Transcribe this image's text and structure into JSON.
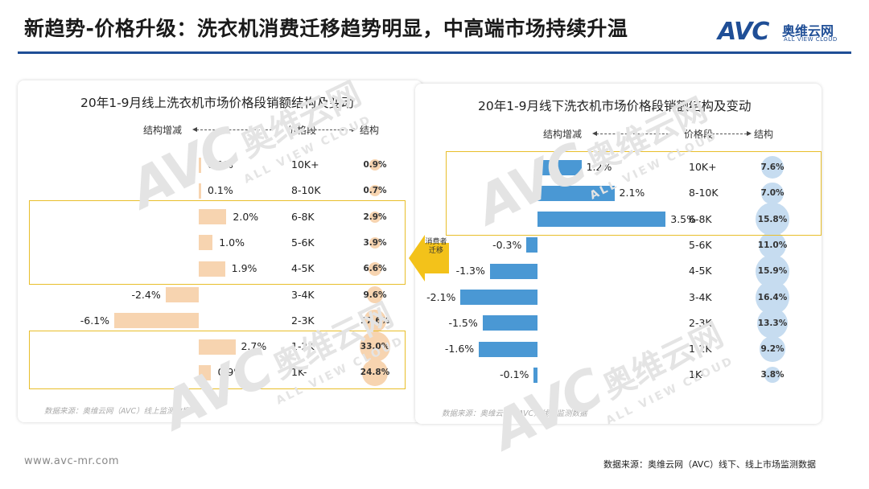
{
  "header": {
    "title": "新趋势-价格升级：洗衣机消费迁移趋势明显，中高端市场持续升温",
    "logo_avc": "AVC",
    "logo_cn": "奥维云网",
    "logo_en": "ALL VIEW CLOUD",
    "accent_color": "#1f4e96"
  },
  "watermark": {
    "avc": "AVC",
    "cn": "奥维云网",
    "en": "ALL VIEW CLOUD"
  },
  "migration_label": "消费者迁移",
  "footer": {
    "url": "www.avc-mr.com",
    "source": "数据来源：奥维云网（AVC）线下、线上市场监测数据"
  },
  "chart_data": [
    {
      "type": "bar",
      "title": "20年1-9月线上洗衣机市场价格段销额结构及变动",
      "header_change": "结构增减",
      "header_segment": "价格段",
      "header_share": "结构",
      "bar_color": "#f7d4b0",
      "categories": [
        "10K+",
        "8-10K",
        "6-8K",
        "5-6K",
        "4-5K",
        "3-4K",
        "2-3K",
        "1-2K",
        "1K-"
      ],
      "series": [
        {
          "name": "结构增减",
          "values": [
            0.1,
            0.1,
            2.0,
            1.0,
            1.9,
            -2.4,
            -6.1,
            2.7,
            0.9
          ],
          "labels": [
            "0.1%",
            "0.1%",
            "2.0%",
            "1.0%",
            "1.9%",
            "-2.4%",
            "-6.1%",
            "2.7%",
            "0.9%"
          ]
        },
        {
          "name": "结构",
          "values": [
            0.9,
            0.7,
            2.9,
            3.9,
            6.6,
            9.6,
            17.6,
            33.0,
            24.8
          ],
          "labels": [
            "0.9%",
            "0.7%",
            "2.9%",
            "3.9%",
            "6.6%",
            "9.6%",
            "17.6%",
            "33.0%",
            "24.8%"
          ]
        }
      ],
      "highlight_groups": [
        [
          "6-8K",
          "5-6K",
          "4-5K"
        ],
        [
          "1-2K",
          "1K-"
        ]
      ],
      "source_note": "数据来源：奥维云网（AVC）线上监测数据"
    },
    {
      "type": "bar",
      "title": "20年1-9月线下洗衣机市场价格段销额结构及变动",
      "header_change": "结构增减",
      "header_segment": "价格段",
      "header_share": "结构",
      "bar_color": "#4a98d4",
      "categories": [
        "10K+",
        "8-10K",
        "6-8K",
        "5-6K",
        "4-5K",
        "3-4K",
        "2-3K",
        "1-2K",
        "1K-"
      ],
      "series": [
        {
          "name": "结构增减",
          "values": [
            1.2,
            2.1,
            3.5,
            -0.3,
            -1.3,
            -2.1,
            -1.5,
            -1.6,
            -0.1
          ],
          "labels": [
            "1.2%",
            "2.1%",
            "3.5%",
            "-0.3%",
            "-1.3%",
            "-2.1%",
            "-1.5%",
            "-1.6%",
            "-0.1%"
          ]
        },
        {
          "name": "结构",
          "values": [
            7.6,
            7.0,
            15.8,
            11.0,
            15.9,
            16.4,
            13.3,
            9.2,
            3.8
          ],
          "labels": [
            "7.6%",
            "7.0%",
            "15.8%",
            "11.0%",
            "15.9%",
            "16.4%",
            "13.3%",
            "9.2%",
            "3.8%"
          ]
        }
      ],
      "highlight_groups": [
        [
          "10K+",
          "8-10K",
          "6-8K"
        ]
      ],
      "source_note": "数据来源：奥维云网（AVC）线下监测数据"
    }
  ]
}
